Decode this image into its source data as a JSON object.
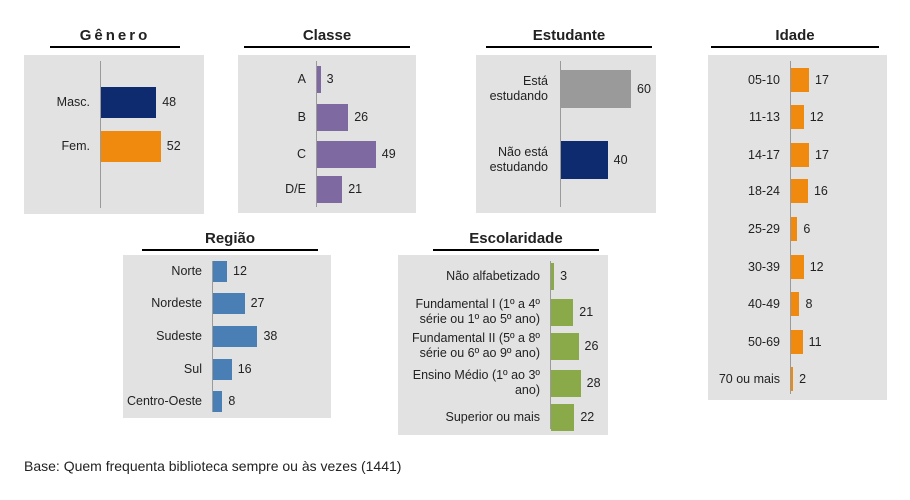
{
  "chart_data": [
    {
      "id": "genero",
      "type": "bar",
      "orientation": "horizontal",
      "title": "Gênero",
      "color": "#f08a0f",
      "categories": [
        "Masc.",
        "Fem."
      ],
      "values": [
        48,
        52
      ],
      "bar_colors": [
        "#0d2b6e",
        "#f08a0f"
      ]
    },
    {
      "id": "classe",
      "type": "bar",
      "orientation": "horizontal",
      "title": "Classe",
      "color": "#7e6aa1",
      "categories": [
        "A",
        "B",
        "C",
        "D/E"
      ],
      "values": [
        3,
        26,
        49,
        21
      ]
    },
    {
      "id": "estudante",
      "type": "bar",
      "orientation": "horizontal",
      "title": "Estudante",
      "color": "#9a9a9a",
      "categories": [
        "Está\nestudando",
        "Não está\nestudando"
      ],
      "values": [
        60,
        40
      ],
      "bar_colors": [
        "#9a9a9a",
        "#0d2b6e"
      ]
    },
    {
      "id": "idade",
      "type": "bar",
      "orientation": "horizontal",
      "title": "Idade",
      "color": "#f08a0f",
      "categories": [
        "05-10",
        "11-13",
        "14-17",
        "18-24",
        "25-29",
        "30-39",
        "40-49",
        "50-69",
        "70 ou mais"
      ],
      "values": [
        17,
        12,
        17,
        16,
        6,
        12,
        8,
        11,
        2
      ]
    },
    {
      "id": "regiao",
      "type": "bar",
      "orientation": "horizontal",
      "title": "Região",
      "color": "#4a7fb5",
      "categories": [
        "Norte",
        "Nordeste",
        "Sudeste",
        "Sul",
        "Centro-Oeste"
      ],
      "values": [
        12,
        27,
        38,
        16,
        8
      ]
    },
    {
      "id": "escolaridade",
      "type": "bar",
      "orientation": "horizontal",
      "title": "Escolaridade",
      "color": "#8aaa4a",
      "categories": [
        "Não alfabetizado",
        "Fundamental I (1º a 4º\nsérie ou 1º ao 5º ano)",
        "Fundamental II (5º a 8º\nsérie ou 6º ao 9º ano)",
        "Ensino Médio (1º ao 3º\nano)",
        "Superior ou mais"
      ],
      "values": [
        3,
        21,
        26,
        28,
        22
      ]
    }
  ],
  "footnote": "Base: Quem frequenta biblioteca sempre ou às vezes (1441)"
}
